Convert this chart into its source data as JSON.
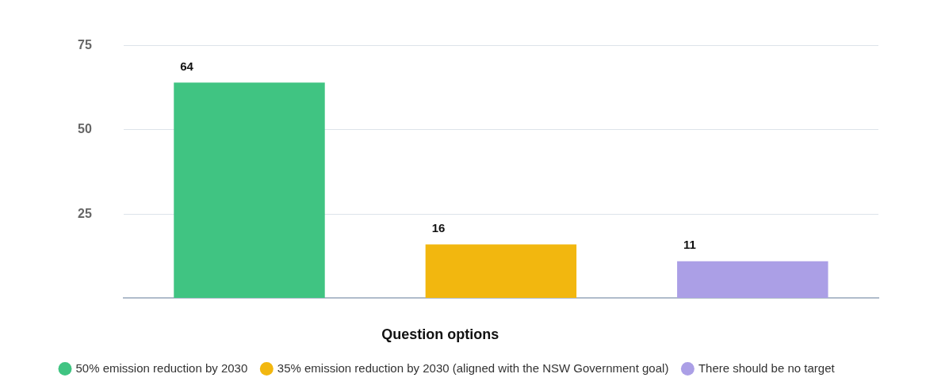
{
  "chart_data": {
    "type": "bar",
    "legend_title": "Question options",
    "categories": [
      null,
      null,
      null
    ],
    "series": [
      {
        "name": "50% emission reduction by 2030",
        "color": "#40c482",
        "values": [
          64,
          null,
          null
        ]
      },
      {
        "name": "35% emission reduction by 2030 (aligned with the NSW Government goal)",
        "color": "#f2b70f",
        "values": [
          null,
          16,
          null
        ]
      },
      {
        "name": "There should be no target",
        "color": "#ab9fe6",
        "values": [
          null,
          null,
          11
        ]
      }
    ],
    "ylim": [
      0,
      75
    ],
    "yticks": [
      {
        "value": 0,
        "label": null
      },
      25,
      50,
      75
    ],
    "grid": "y",
    "legend": "bottom",
    "tick_labels": "y",
    "data_labels": true
  }
}
